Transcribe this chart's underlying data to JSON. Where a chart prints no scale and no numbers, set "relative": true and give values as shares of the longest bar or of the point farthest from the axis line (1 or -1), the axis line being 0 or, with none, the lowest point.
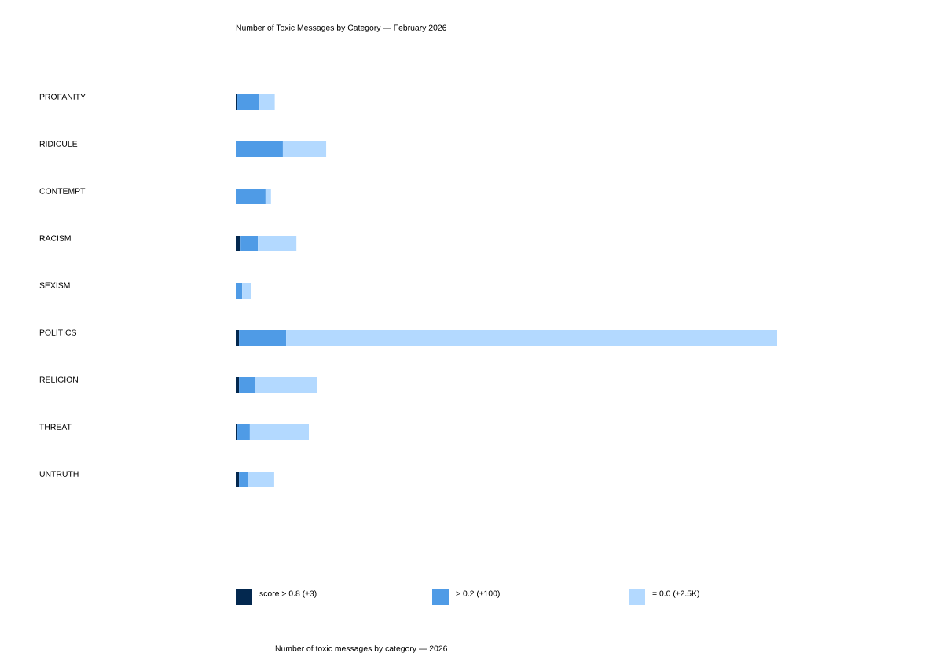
{
  "chart_data": {
    "type": "bar",
    "orientation": "horizontal",
    "stacked": true,
    "relative": true,
    "title": "Number of Toxic Messages by Category — February 2026",
    "categories": [
      "PROFANITY",
      "RIDICULE",
      "CONTEMPT",
      "RACISM",
      "SEXISM",
      "POLITICS",
      "RELIGION",
      "THREAT",
      "UNTRUTH"
    ],
    "series": [
      {
        "name": "score > 0.8 (±3)",
        "color": "#03284f",
        "values": [
          0.003,
          0,
          0,
          0.009,
          0,
          0.006,
          0.006,
          0.003,
          0.006
        ]
      },
      {
        "name": "> 0.2 (±100)",
        "color": "#4f9be6",
        "values": [
          0.041,
          0.087,
          0.055,
          0.032,
          0.012,
          0.087,
          0.029,
          0.023,
          0.017
        ]
      },
      {
        "name": "= 0.0 (±2.5K)",
        "color": "#b3d9ff",
        "values": [
          0.028,
          0.08,
          0.01,
          0.071,
          0.016,
          0.907,
          0.115,
          0.109,
          0.048
        ]
      }
    ],
    "legend": "bottom",
    "annotations": [
      "Number of toxic messages by category — 2026"
    ]
  }
}
